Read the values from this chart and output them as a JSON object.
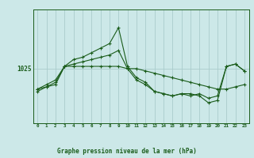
{
  "title": "Graphe pression niveau de la mer (hPa)",
  "background_color": "#cce8e8",
  "plot_bg_color": "#cce8e8",
  "line_color": "#1a5c1a",
  "grid_color": "#aacccc",
  "ylabel_value": 1025,
  "hours": [
    0,
    1,
    2,
    3,
    4,
    5,
    6,
    7,
    8,
    9,
    10,
    11,
    12,
    13,
    14,
    15,
    16,
    17,
    18,
    19,
    20,
    21,
    22,
    23
  ],
  "series1": [
    1020.0,
    1021.0,
    1022.0,
    1025.5,
    1027.0,
    1027.5,
    1028.5,
    1029.5,
    1030.5,
    1034.0,
    1025.5,
    1023.0,
    1022.0,
    1020.0,
    1019.5,
    1019.0,
    1019.5,
    1019.0,
    1019.5,
    1018.5,
    1019.0,
    1025.5,
    1026.0,
    1024.5
  ],
  "series2": [
    1020.5,
    1021.0,
    1021.5,
    1025.5,
    1025.5,
    1025.5,
    1025.5,
    1025.5,
    1025.5,
    1025.5,
    1025.0,
    1025.0,
    1024.5,
    1024.0,
    1023.5,
    1023.0,
    1022.5,
    1022.0,
    1021.5,
    1021.0,
    1020.5,
    1020.5,
    1021.0,
    1021.5
  ],
  "series3": [
    1020.5,
    1021.5,
    1022.5,
    1025.5,
    1026.0,
    1026.5,
    1027.0,
    1027.5,
    1028.0,
    1029.0,
    1025.0,
    1022.5,
    1021.5,
    1020.0,
    1019.5,
    1019.0,
    1019.5,
    1019.5,
    1019.0,
    1017.5,
    1018.0,
    1025.5,
    1026.0,
    1024.5
  ],
  "ylim_min": 1013,
  "ylim_max": 1038,
  "marker_size": 3.0,
  "line_width": 0.8
}
